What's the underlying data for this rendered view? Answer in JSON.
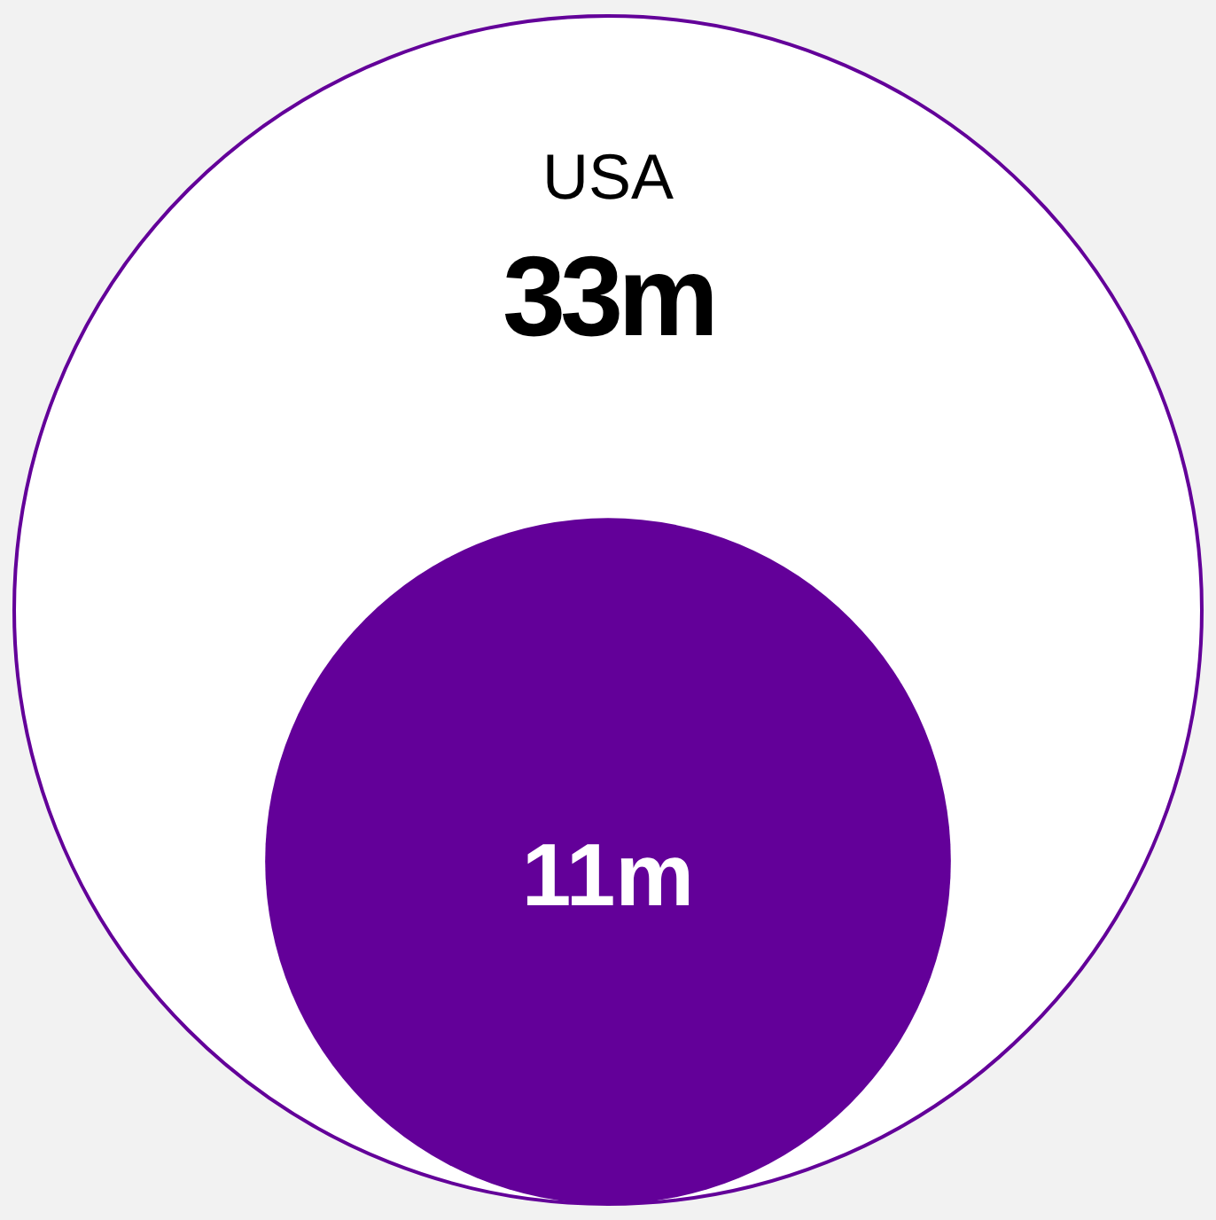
{
  "chart_data": {
    "type": "other",
    "categories": [
      "USA",
      null
    ],
    "values": [
      33,
      11
    ],
    "value_labels": [
      "33m",
      "11m"
    ],
    "colors": [
      "#ffffff",
      "#630099"
    ]
  }
}
